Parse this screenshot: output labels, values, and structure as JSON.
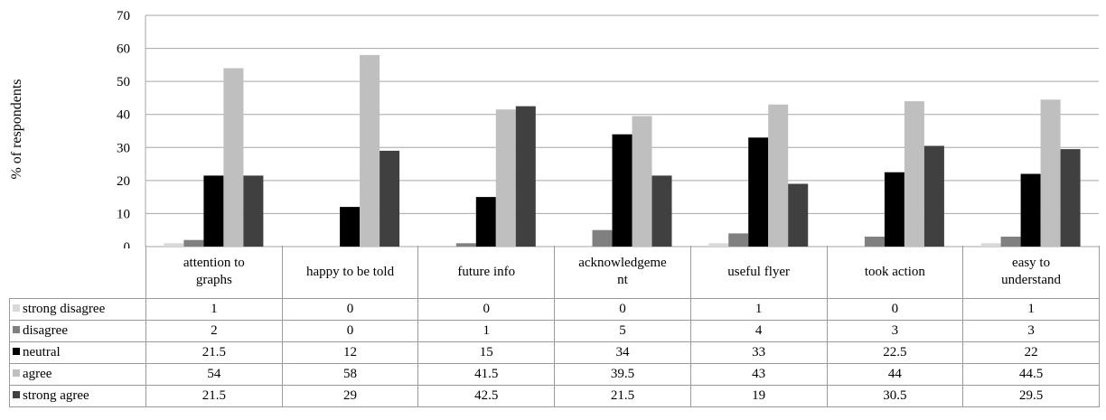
{
  "chart_data": {
    "type": "bar",
    "title": "",
    "xlabel": "",
    "ylabel": "% of respondents",
    "ylim": [
      0,
      70
    ],
    "yticks": [
      0,
      10,
      20,
      30,
      40,
      50,
      60,
      70
    ],
    "grid": true,
    "legend": "data table below chart",
    "categories": [
      "attention to graphs",
      "happy to be told",
      "future info",
      "acknowledgement",
      "useful flyer",
      "took action",
      "easy to understand"
    ],
    "category_display": [
      [
        "attention to",
        "graphs"
      ],
      [
        "happy to be told"
      ],
      [
        "future info"
      ],
      [
        "acknowledgeme",
        "nt"
      ],
      [
        "useful flyer"
      ],
      [
        "took action"
      ],
      [
        "easy to",
        "understand"
      ]
    ],
    "series": [
      {
        "name": "strong disagree",
        "color": "#d9d9d9",
        "values": [
          1,
          0,
          0,
          0,
          1,
          0,
          1
        ]
      },
      {
        "name": "disagree",
        "color": "#808080",
        "values": [
          2,
          0,
          1,
          5,
          4,
          3,
          3
        ]
      },
      {
        "name": "neutral",
        "color": "#000000",
        "values": [
          21.5,
          12,
          15,
          34,
          33,
          22.5,
          22
        ]
      },
      {
        "name": "agree",
        "color": "#bfbfbf",
        "values": [
          54,
          58,
          41.5,
          39.5,
          43,
          44,
          44.5
        ]
      },
      {
        "name": "strong agree",
        "color": "#404040",
        "values": [
          21.5,
          29,
          42.5,
          21.5,
          19,
          30.5,
          29.5
        ]
      }
    ]
  }
}
